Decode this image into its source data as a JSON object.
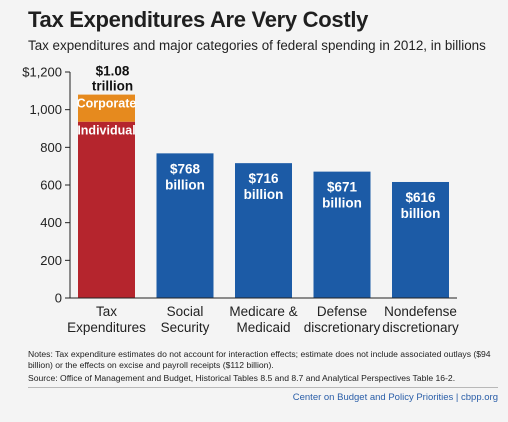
{
  "header": {
    "title": "Tax Expenditures Are Very Costly",
    "subtitle": "Tax expenditures and major categories of federal spending in 2012, in billions"
  },
  "chart_data": {
    "type": "bar",
    "categories": [
      [
        "Tax",
        "Expenditures"
      ],
      [
        "Social",
        "Security"
      ],
      [
        "Medicare &",
        "Medicaid"
      ],
      [
        "Defense",
        "discretionary"
      ],
      [
        "Nondefense",
        "discretionary"
      ]
    ],
    "values": [
      1080,
      768,
      716,
      671,
      616
    ],
    "stacked_first_bar": [
      {
        "name": "Individual",
        "value": 936,
        "color": "#b5252d"
      },
      {
        "name": "Corporate",
        "value": 144,
        "color": "#e68a1e"
      }
    ],
    "data_labels": [
      [
        "$1.08",
        "trillion"
      ],
      [
        "$768",
        "billion"
      ],
      [
        "$716",
        "billion"
      ],
      [
        "$671",
        "billion"
      ],
      [
        "$616",
        "billion"
      ]
    ],
    "ylim": [
      0,
      1200
    ],
    "yticks": [
      0,
      200,
      400,
      600,
      800,
      1000,
      1200
    ],
    "ytick_labels": [
      "0",
      "200",
      "400",
      "600",
      "800",
      "1,000",
      "$1,200"
    ],
    "bar_color": "#1c5ba6",
    "grid": false
  },
  "footer": {
    "notes": "Notes: Tax expenditure estimates do not account for interaction effects; estimate does not include associated outlays ($94 billion) or the effects on excise and payroll receipts ($112 billion).",
    "source": "Source: Office of Management and Budget, Historical Tables 8.5 and 8.7 and Analytical Perspectives Table 16-2.",
    "credit": "Center on Budget and Policy Priorities | cbpp.org"
  }
}
